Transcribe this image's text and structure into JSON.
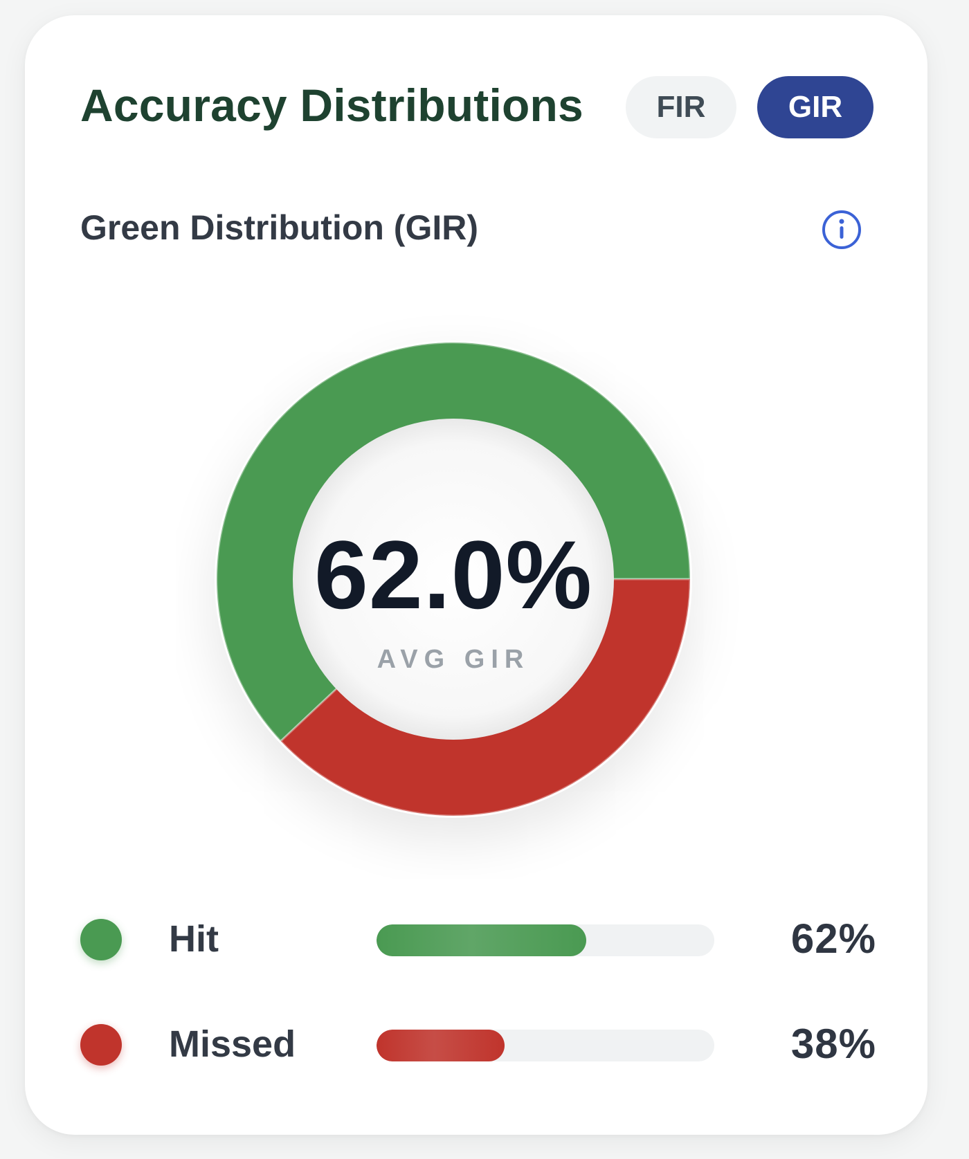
{
  "header": {
    "title": "Accuracy Distributions",
    "toggles": [
      {
        "label": "FIR",
        "active": false
      },
      {
        "label": "GIR",
        "active": true
      }
    ]
  },
  "section": {
    "subtitle": "Green Distribution (GIR)",
    "info_icon": "info-circle-icon"
  },
  "chart_data": {
    "type": "pie",
    "categories": [
      "Hit",
      "Missed"
    ],
    "values": [
      62,
      38
    ],
    "center_value": "62.0%",
    "center_label": "AVG GIR"
  },
  "legend": [
    {
      "label": "Hit",
      "percent": 62,
      "display": "62%"
    },
    {
      "label": "Missed",
      "percent": 38,
      "display": "38%"
    }
  ],
  "colors": {
    "hit": "#4a9a52",
    "missed": "#c0342c",
    "title": "#1e4230",
    "active_toggle": "#2f4593",
    "info": "#3b62d6"
  }
}
